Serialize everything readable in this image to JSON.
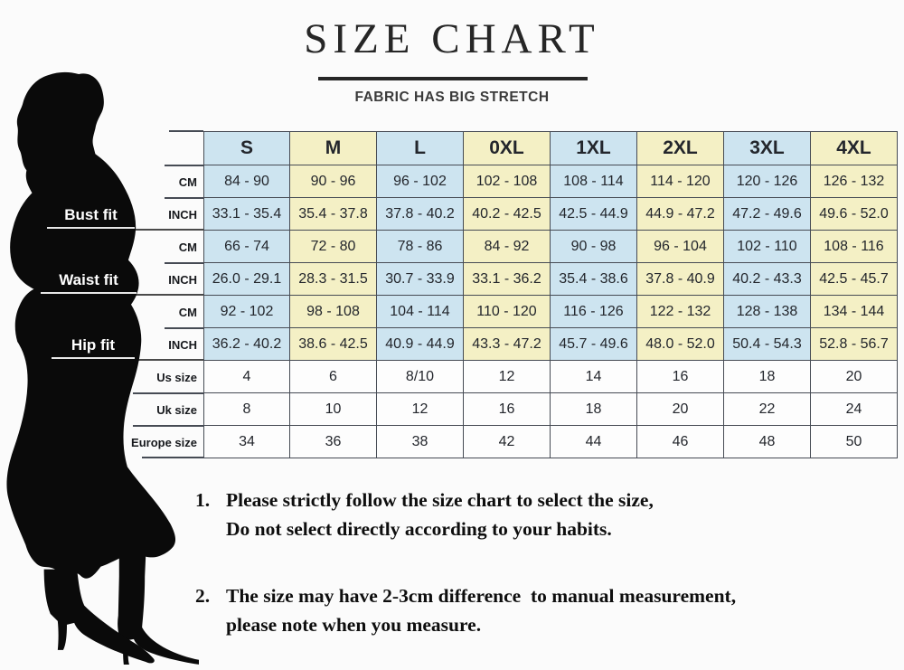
{
  "title": "SIZE CHART",
  "subtitle": "FABRIC HAS BIG STRETCH",
  "figure": {
    "bust_label": "Bust fit",
    "waist_label": "Waist fit",
    "hip_label": "Hip fit"
  },
  "chart_data": {
    "type": "table",
    "title": "SIZE CHART",
    "subtitle": "FABRIC HAS BIG STRETCH",
    "columns": [
      "S",
      "M",
      "L",
      "0XL",
      "1XL",
      "2XL",
      "3XL",
      "4XL"
    ],
    "rows": [
      {
        "group": "Bust fit",
        "label": "CM",
        "alt": true,
        "cells": [
          "84 - 90",
          "90 - 96",
          "96 - 102",
          "102 - 108",
          "108 - 114",
          "114 - 120",
          "120 - 126",
          "126 - 132"
        ]
      },
      {
        "group": "Bust fit",
        "label": "INCH",
        "alt": true,
        "cells": [
          "33.1 - 35.4",
          "35.4 - 37.8",
          "37.8 - 40.2",
          "40.2 - 42.5",
          "42.5 - 44.9",
          "44.9 - 47.2",
          "47.2 - 49.6",
          "49.6 - 52.0"
        ]
      },
      {
        "group": "Waist fit",
        "label": "CM",
        "alt": true,
        "cells": [
          "66 - 74",
          "72 - 80",
          "78 - 86",
          "84 - 92",
          "90 - 98",
          "96 - 104",
          "102 - 110",
          "108 - 116"
        ]
      },
      {
        "group": "Waist fit",
        "label": "INCH",
        "alt": true,
        "cells": [
          "26.0 - 29.1",
          "28.3 - 31.5",
          "30.7 - 33.9",
          "33.1 - 36.2",
          "35.4 - 38.6",
          "37.8 - 40.9",
          "40.2 - 43.3",
          "42.5 - 45.7"
        ]
      },
      {
        "group": "Hip fit",
        "label": "CM",
        "alt": true,
        "cells": [
          "92 - 102",
          "98 - 108",
          "104 - 114",
          "110 - 120",
          "116 - 126",
          "122 - 132",
          "128 - 138",
          "134 - 144"
        ]
      },
      {
        "group": "Hip fit",
        "label": "INCH",
        "alt": true,
        "cells": [
          "36.2 - 40.2",
          "38.6 - 42.5",
          "40.9 - 44.9",
          "43.3 - 47.2",
          "45.7 - 49.6",
          "48.0 - 52.0",
          "50.4 - 54.3",
          "52.8 - 56.7"
        ]
      },
      {
        "group": "",
        "label": "Us size",
        "alt": false,
        "cells": [
          "4",
          "6",
          "8/10",
          "12",
          "14",
          "16",
          "18",
          "20"
        ]
      },
      {
        "group": "",
        "label": "Uk size",
        "alt": false,
        "cells": [
          "8",
          "10",
          "12",
          "16",
          "18",
          "20",
          "22",
          "24"
        ]
      },
      {
        "group": "",
        "label": "Europe size",
        "alt": false,
        "cells": [
          "34",
          "36",
          "38",
          "42",
          "44",
          "46",
          "48",
          "50"
        ]
      }
    ],
    "colors": {
      "cell_blue": "#cde4f0",
      "cell_yellow": "#f4f0c5",
      "border": "#464b54"
    }
  },
  "notes": [
    {
      "num": "1.",
      "lines": [
        "Please strictly follow the size chart to select the size,",
        "Do not select directly according to your habits."
      ]
    },
    {
      "num": "2.",
      "lines": [
        "The size may have 2-3cm difference  to manual measurement,",
        "please note when you measure."
      ]
    }
  ]
}
